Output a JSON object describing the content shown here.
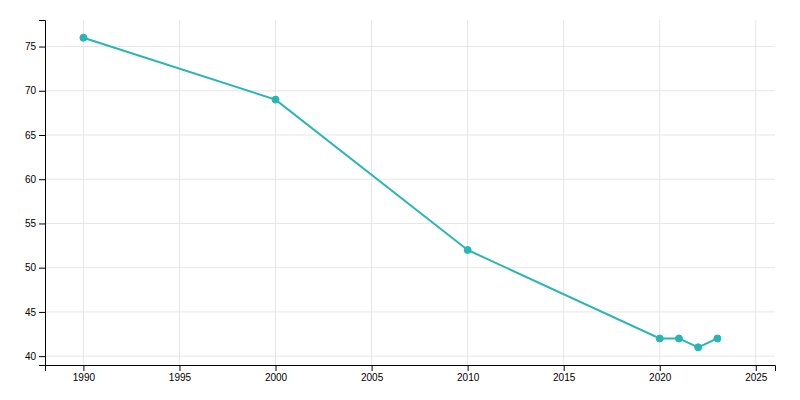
{
  "chart_data": {
    "type": "line",
    "x": [
      1990,
      2000,
      2010,
      2020,
      2021,
      2022,
      2023
    ],
    "values": [
      76.0,
      69.0,
      52.0,
      42.0,
      42.0,
      41.0,
      42.0
    ],
    "color": "#2ab5b5",
    "marker": "circle",
    "xlim": [
      1988,
      2026
    ],
    "ylim": [
      39,
      78
    ],
    "xticks": [
      1990,
      1995,
      2000,
      2005,
      2010,
      2015,
      2020,
      2025
    ],
    "yticks": [
      40,
      45,
      50,
      55,
      60,
      65,
      70,
      75
    ],
    "grid": true
  }
}
